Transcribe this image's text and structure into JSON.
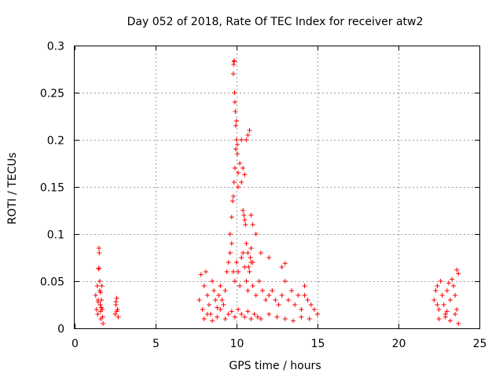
{
  "chart_data": {
    "type": "scatter",
    "title": "Day 052 of 2018, Rate Of TEC Index for receiver atw2",
    "xlabel": "GPS time / hours",
    "ylabel": "ROTI / TECUs",
    "xlim": [
      0,
      25
    ],
    "ylim": [
      0,
      0.3
    ],
    "x_ticks": [
      0,
      5,
      10,
      15,
      20,
      25
    ],
    "x_tick_labels": [
      "0",
      "5",
      "10",
      "15",
      "20",
      "25"
    ],
    "y_ticks": [
      0,
      0.05,
      0.1,
      0.15,
      0.2,
      0.25,
      0.3
    ],
    "y_tick_labels": [
      "0",
      "0.05",
      "0.1",
      "0.15",
      "0.2",
      "0.25",
      "0.3"
    ],
    "grid": true,
    "marker": "plus",
    "color": "#ff0000",
    "series": [
      {
        "name": "ROTI",
        "x": [
          1.3,
          1.35,
          1.4,
          1.42,
          1.45,
          1.48,
          1.5,
          1.52,
          1.55,
          1.58,
          1.6,
          1.62,
          1.65,
          1.68,
          1.7,
          1.72,
          1.75,
          1.5,
          1.55,
          1.6,
          1.45,
          1.65,
          2.5,
          2.55,
          2.6,
          2.65,
          2.7,
          2.55,
          2.6,
          7.7,
          7.8,
          7.9,
          8.0,
          8.1,
          8.2,
          8.3,
          8.4,
          8.5,
          8.6,
          8.7,
          8.8,
          8.9,
          9.0,
          9.1,
          9.2,
          9.3,
          9.4,
          9.5,
          9.6,
          9.7,
          9.8,
          9.9,
          10.0,
          10.1,
          10.2,
          10.3,
          10.4,
          10.5,
          10.6,
          10.7,
          10.8,
          10.9,
          11.0,
          11.2,
          11.4,
          11.6,
          11.8,
          12.0,
          12.2,
          12.4,
          12.6,
          12.8,
          13.0,
          13.2,
          13.4,
          13.6,
          13.8,
          14.0,
          14.2,
          14.4,
          14.6,
          14.8,
          15.0,
          8.0,
          8.2,
          8.5,
          8.8,
          9.0,
          9.3,
          9.5,
          9.7,
          9.9,
          10.1,
          10.3,
          10.5,
          10.7,
          10.9,
          11.1,
          11.3,
          11.5,
          12.0,
          12.5,
          13.0,
          13.5,
          14.0,
          14.5,
          9.6,
          9.7,
          9.75,
          9.8,
          9.85,
          9.9,
          9.95,
          10.0,
          10.05,
          10.1,
          10.2,
          10.3,
          10.4,
          10.5,
          10.6,
          10.7,
          10.8,
          10.9,
          11.0,
          11.2,
          11.5,
          12.0,
          12.8,
          13.0,
          14.2,
          9.8,
          9.82,
          9.84,
          9.86,
          9.88,
          9.9,
          9.92,
          9.95,
          10.0,
          10.05,
          10.1,
          10.3,
          10.4,
          10.45,
          10.5,
          10.55,
          10.6,
          10.7,
          10.75,
          10.8,
          10.85,
          10.9,
          11.0,
          22.2,
          22.3,
          22.4,
          22.5,
          22.6,
          22.7,
          22.8,
          22.9,
          23.0,
          23.1,
          23.2,
          23.3,
          23.4,
          23.5,
          23.6,
          23.7,
          22.5,
          22.9,
          23.2,
          23.5,
          23.6,
          23.7,
          22.4,
          23.0
        ],
        "y": [
          0.035,
          0.02,
          0.045,
          0.015,
          0.03,
          0.063,
          0.085,
          0.08,
          0.04,
          0.025,
          0.018,
          0.01,
          0.03,
          0.045,
          0.02,
          0.012,
          0.005,
          0.064,
          0.05,
          0.038,
          0.028,
          0.022,
          0.015,
          0.025,
          0.032,
          0.02,
          0.012,
          0.028,
          0.018,
          0.03,
          0.057,
          0.02,
          0.045,
          0.06,
          0.035,
          0.025,
          0.015,
          0.05,
          0.04,
          0.03,
          0.022,
          0.035,
          0.045,
          0.03,
          0.025,
          0.04,
          0.06,
          0.07,
          0.08,
          0.09,
          0.06,
          0.05,
          0.07,
          0.06,
          0.045,
          0.075,
          0.08,
          0.065,
          0.05,
          0.04,
          0.06,
          0.07,
          0.045,
          0.035,
          0.05,
          0.04,
          0.03,
          0.035,
          0.04,
          0.03,
          0.025,
          0.035,
          0.069,
          0.03,
          0.04,
          0.025,
          0.035,
          0.02,
          0.045,
          0.03,
          0.025,
          0.02,
          0.015,
          0.01,
          0.015,
          0.008,
          0.012,
          0.02,
          0.01,
          0.015,
          0.018,
          0.012,
          0.02,
          0.015,
          0.012,
          0.018,
          0.01,
          0.015,
          0.012,
          0.01,
          0.015,
          0.012,
          0.01,
          0.008,
          0.012,
          0.01,
          0.1,
          0.118,
          0.135,
          0.14,
          0.155,
          0.17,
          0.19,
          0.22,
          0.185,
          0.165,
          0.175,
          0.2,
          0.17,
          0.163,
          0.2,
          0.205,
          0.21,
          0.12,
          0.11,
          0.1,
          0.08,
          0.075,
          0.065,
          0.05,
          0.035,
          0.27,
          0.28,
          0.283,
          0.284,
          0.25,
          0.24,
          0.23,
          0.215,
          0.2,
          0.195,
          0.15,
          0.155,
          0.125,
          0.12,
          0.115,
          0.11,
          0.09,
          0.08,
          0.065,
          0.06,
          0.075,
          0.085,
          0.07,
          0.03,
          0.04,
          0.045,
          0.02,
          0.05,
          0.035,
          0.025,
          0.015,
          0.04,
          0.048,
          0.03,
          0.052,
          0.045,
          0.035,
          0.062,
          0.058,
          0.01,
          0.012,
          0.008,
          0.015,
          0.02,
          0.005,
          0.025,
          0.018
        ]
      }
    ]
  }
}
